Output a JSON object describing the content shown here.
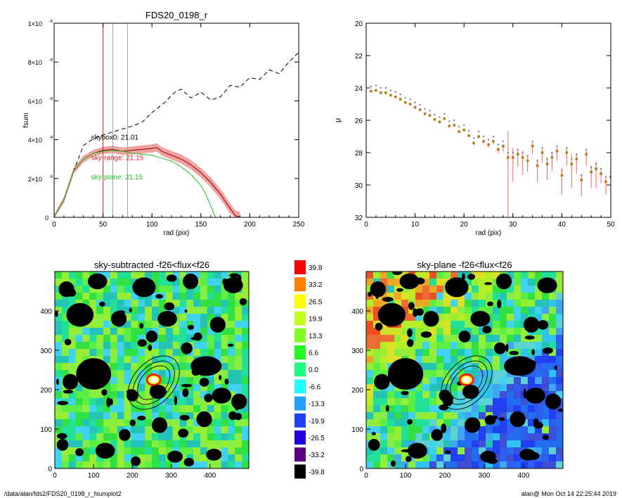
{
  "footer": {
    "path": "/data/alan/fds2/FDS20_0198_r_fsumplot2",
    "stamp": "alan@  Mon Oct 14 22:25:44 2019"
  },
  "chart_data": [
    {
      "type": "line",
      "title": "FDS20_0198_r",
      "xlabel": "rad (pix)",
      "ylabel": "fsum",
      "xlim": [
        0,
        250
      ],
      "ylim": [
        0,
        1e-08
      ],
      "xticks": [
        "0",
        "50",
        "100",
        "150",
        "200",
        "250"
      ],
      "yticks": [
        {
          "v": 0,
          "m": "0",
          "e": ""
        },
        {
          "v": 2e-09,
          "m": "2×10",
          "e": "-9"
        },
        {
          "v": 4e-09,
          "m": "4×10",
          "e": "-9"
        },
        {
          "v": 6e-09,
          "m": "6×10",
          "e": "-9"
        },
        {
          "v": 8e-09,
          "m": "8×10",
          "e": "-9"
        },
        {
          "v": 1e-08,
          "m": "1×10",
          "e": "-8"
        }
      ],
      "vlines": [
        {
          "x": 50,
          "color": "#e02020"
        },
        {
          "x": 60,
          "color": "#a0a0a0"
        },
        {
          "x": 75,
          "color": "#a0a0a0"
        }
      ],
      "annotations": [
        {
          "text": "skybox0: 21.01",
          "color": "#000000",
          "x": 30,
          "y": 4e-09
        },
        {
          "text": "sky-range: 21.15",
          "color": "#e02020",
          "x": 30,
          "y": 2.95e-09
        },
        {
          "text": "sky-plane: 21.15",
          "color": "#20c020",
          "x": 30,
          "y": 1.95e-09
        }
      ],
      "series": [
        {
          "style": "dashed",
          "color": "#000000",
          "x": [
            0,
            10,
            20,
            30,
            40,
            50,
            60,
            70,
            80,
            90,
            100,
            110,
            115,
            120,
            125,
            130,
            140,
            150,
            160,
            170,
            180,
            190,
            200,
            210,
            220,
            230,
            240,
            250
          ],
          "y": [
            0,
            9e-10,
            2.4e-09,
            3.7e-09,
            4.05e-09,
            4.25e-09,
            4.4e-09,
            4.55e-09,
            4.7e-09,
            4.9e-09,
            5.4e-09,
            5.8e-09,
            6e-09,
            6.3e-09,
            6.5e-09,
            6.6e-09,
            6.15e-09,
            6.45e-09,
            6.05e-09,
            6.2e-09,
            6.8e-09,
            6.7e-09,
            7.2e-09,
            7.1e-09,
            7.6e-09,
            7.4e-09,
            8e-09,
            8.5e-09
          ]
        },
        {
          "style": "solid",
          "color": "#8b0000",
          "band": "#f09090",
          "x": [
            0,
            10,
            20,
            30,
            40,
            50,
            60,
            70,
            80,
            90,
            100,
            105,
            110,
            120,
            130,
            140,
            150,
            160,
            170,
            180,
            185,
            190
          ],
          "y": [
            0,
            9e-10,
            2.4e-09,
            3e-09,
            3.3e-09,
            3.45e-09,
            3.5e-09,
            3.4e-09,
            3.45e-09,
            3.5e-09,
            3.55e-09,
            3.6e-09,
            3.4e-09,
            3.2e-09,
            3e-09,
            2.7e-09,
            2.3e-09,
            1.8e-09,
            1.2e-09,
            4.5e-10,
            1e-10,
            0
          ]
        },
        {
          "style": "solid",
          "color": "#20c020",
          "x": [
            0,
            10,
            20,
            30,
            40,
            50,
            60,
            70,
            80,
            90,
            100,
            110,
            120,
            130,
            140,
            150,
            155,
            160,
            165
          ],
          "y": [
            0,
            9e-10,
            2.4e-09,
            3e-09,
            3.3e-09,
            3.4e-09,
            3.45e-09,
            3.4e-09,
            3.3e-09,
            3.25e-09,
            3.2e-09,
            3.05e-09,
            2.9e-09,
            2.6e-09,
            2.2e-09,
            1.65e-09,
            1.2e-09,
            6e-10,
            0
          ]
        }
      ]
    },
    {
      "type": "scatter",
      "title": "",
      "xlabel": "rad (pix)",
      "ylabel": "μ",
      "xlim": [
        0,
        50
      ],
      "ylim": [
        32,
        20
      ],
      "xticks": [
        "0",
        "10",
        "20",
        "30",
        "40",
        "50"
      ],
      "yticks": [
        "20",
        "22",
        "24",
        "26",
        "28",
        "30",
        "32"
      ],
      "points": [
        {
          "x": 1,
          "y": 24.2,
          "e": 0.05
        },
        {
          "x": 2,
          "y": 24.15,
          "e": 0.05
        },
        {
          "x": 3,
          "y": 24.3,
          "e": 0.05
        },
        {
          "x": 4,
          "y": 24.3,
          "e": 0.05
        },
        {
          "x": 5,
          "y": 24.45,
          "e": 0.05
        },
        {
          "x": 6,
          "y": 24.55,
          "e": 0.05
        },
        {
          "x": 7,
          "y": 24.7,
          "e": 0.05
        },
        {
          "x": 8,
          "y": 24.9,
          "e": 0.05
        },
        {
          "x": 9,
          "y": 25.0,
          "e": 0.05
        },
        {
          "x": 10,
          "y": 25.2,
          "e": 0.05
        },
        {
          "x": 11,
          "y": 25.35,
          "e": 0.05
        },
        {
          "x": 12,
          "y": 25.6,
          "e": 0.05
        },
        {
          "x": 13,
          "y": 25.7,
          "e": 0.05
        },
        {
          "x": 14,
          "y": 25.95,
          "e": 0.05
        },
        {
          "x": 15,
          "y": 26.1,
          "e": 0.05
        },
        {
          "x": 16,
          "y": 25.9,
          "e": 0.05
        },
        {
          "x": 17,
          "y": 26.35,
          "e": 0.08
        },
        {
          "x": 18,
          "y": 26.3,
          "e": 0.08
        },
        {
          "x": 19,
          "y": 26.7,
          "e": 0.08
        },
        {
          "x": 20,
          "y": 26.6,
          "e": 0.1
        },
        {
          "x": 21,
          "y": 26.95,
          "e": 0.1
        },
        {
          "x": 22,
          "y": 27.4,
          "e": 0.15
        },
        {
          "x": 23,
          "y": 27.0,
          "e": 0.15
        },
        {
          "x": 24,
          "y": 27.3,
          "e": 0.15
        },
        {
          "x": 25,
          "y": 27.5,
          "e": 0.2
        },
        {
          "x": 26,
          "y": 27.3,
          "e": 0.2
        },
        {
          "x": 27,
          "y": 27.8,
          "e": 0.25
        },
        {
          "x": 28,
          "y": 27.6,
          "e": 0.3
        },
        {
          "x": 29,
          "y": 28.3,
          "e": 4.0
        },
        {
          "x": 30,
          "y": 28.3,
          "e": 1.5
        },
        {
          "x": 31,
          "y": 28.1,
          "e": 0.8
        },
        {
          "x": 32,
          "y": 28.3,
          "e": 1.1
        },
        {
          "x": 33,
          "y": 28.5,
          "e": 0.7
        },
        {
          "x": 34,
          "y": 27.6,
          "e": 0.5
        },
        {
          "x": 35,
          "y": 28.8,
          "e": 1.0
        },
        {
          "x": 36,
          "y": 28.0,
          "e": 0.6
        },
        {
          "x": 37,
          "y": 28.7,
          "e": 1.0
        },
        {
          "x": 38,
          "y": 28.3,
          "e": 0.8
        },
        {
          "x": 39,
          "y": 27.9,
          "e": 0.6
        },
        {
          "x": 40,
          "y": 29.4,
          "e": 1.2
        },
        {
          "x": 41,
          "y": 28.0,
          "e": 0.8
        },
        {
          "x": 42,
          "y": 28.7,
          "e": 1.5
        },
        {
          "x": 43,
          "y": 28.4,
          "e": 0.9
        },
        {
          "x": 44,
          "y": 29.7,
          "e": 1.0
        },
        {
          "x": 45,
          "y": 28.1,
          "e": 0.7
        },
        {
          "x": 46,
          "y": 29.2,
          "e": 1.0
        },
        {
          "x": 47,
          "y": 29.0,
          "e": 1.2
        },
        {
          "x": 48,
          "y": 29.3,
          "e": 0.6
        },
        {
          "x": 49,
          "y": 29.8,
          "e": 0.8
        },
        {
          "x": 50,
          "y": 29.5,
          "e": 0.8
        }
      ]
    },
    {
      "type": "heatmap",
      "title": "sky-subtracted -f26<flux<f26",
      "xticks": [
        "0",
        "100",
        "200",
        "300",
        "400"
      ],
      "yticks": [
        "0",
        "100",
        "200",
        "300",
        "400"
      ],
      "xlim": [
        0,
        500
      ],
      "ylim": [
        0,
        500
      ]
    },
    {
      "type": "heatmap",
      "title": "sky-plane -f26<flux<f26",
      "xticks": [
        "0",
        "100",
        "200",
        "300",
        "400"
      ],
      "yticks": [
        "0",
        "100",
        "200",
        "300",
        "400"
      ],
      "xlim": [
        0,
        500
      ],
      "ylim": [
        0,
        500
      ]
    },
    {
      "type": "legend",
      "title": "",
      "colorbar": [
        {
          "label": "39.8",
          "color": "#ff0000"
        },
        {
          "label": "33.2",
          "color": "#ff8000"
        },
        {
          "label": "26.5",
          "color": "#ffff00"
        },
        {
          "label": "19.9",
          "color": "#c0ff20"
        },
        {
          "label": "13.3",
          "color": "#80ff20"
        },
        {
          "label": "6.6",
          "color": "#20ff20"
        },
        {
          "label": "0.0",
          "color": "#20ff80"
        },
        {
          "label": "-6.6",
          "color": "#20ffff"
        },
        {
          "label": "-13.3",
          "color": "#20a0ff"
        },
        {
          "label": "-19.9",
          "color": "#2040ff"
        },
        {
          "label": "-26.5",
          "color": "#2000e0"
        },
        {
          "label": "-33.2",
          "color": "#600080"
        },
        {
          "label": "-39.8",
          "color": "#000000"
        }
      ]
    }
  ]
}
